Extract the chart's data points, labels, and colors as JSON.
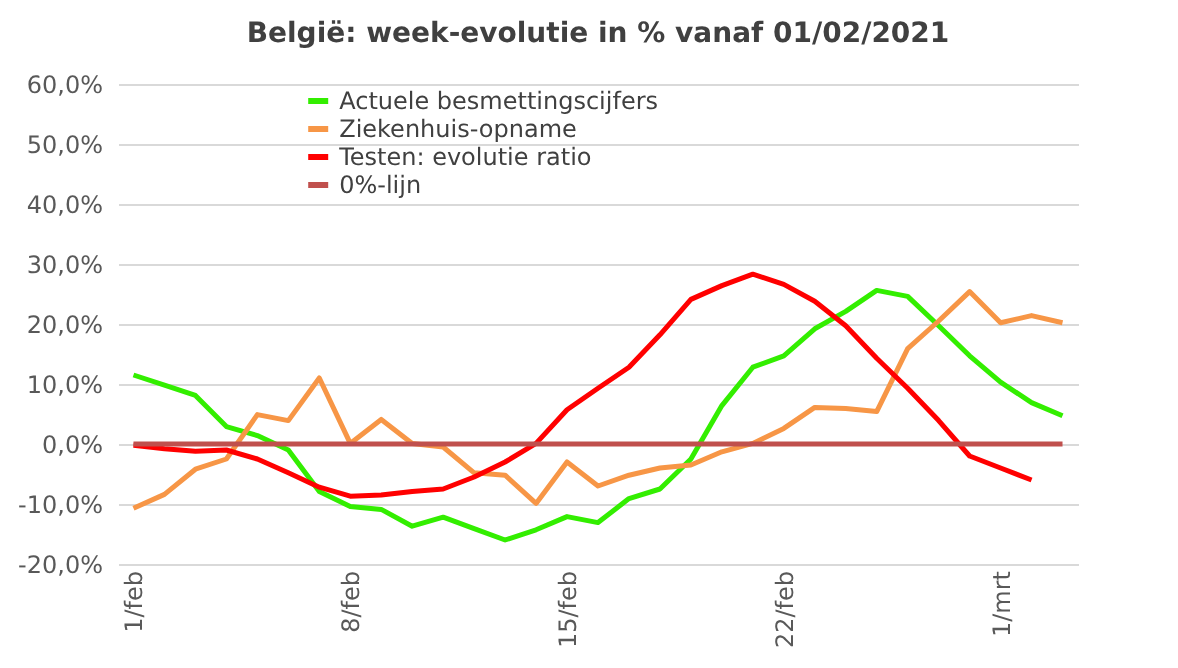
{
  "chart_data": {
    "type": "line",
    "title": "België:  week-evolutie in %  vanaf 01/02/2021",
    "categories": [
      "1/feb",
      null,
      null,
      null,
      null,
      null,
      null,
      "8/feb",
      null,
      null,
      null,
      null,
      null,
      null,
      "15/feb",
      null,
      null,
      null,
      null,
      null,
      null,
      "22/feb",
      null,
      null,
      null,
      null,
      null,
      null,
      "1/mrt",
      null,
      null
    ],
    "series": [
      {
        "name": "Actuele besmettingscijfers",
        "color": "#33ee00",
        "values": [
          11.5,
          9.8,
          8.1,
          2.9,
          1.4,
          -1.0,
          -7.9,
          -10.4,
          -10.9,
          -13.7,
          -12.2,
          -14.1,
          -16.0,
          -14.3,
          -12.1,
          -13.1,
          -9.1,
          -7.5,
          -2.5,
          6.4,
          12.8,
          14.7,
          19.2,
          22.1,
          25.6,
          24.6,
          19.7,
          14.7,
          10.3,
          6.9,
          4.7
        ]
      },
      {
        "name": "Ziekenhuis-opname",
        "color": "#f79646",
        "values": [
          -10.7,
          -8.4,
          -4.2,
          -2.5,
          4.9,
          3.9,
          11.0,
          0.1,
          4.1,
          0.1,
          -0.5,
          -4.8,
          -5.2,
          -9.9,
          -3.0,
          -7.0,
          -5.2,
          -4.0,
          -3.5,
          -1.3,
          0.1,
          2.6,
          6.1,
          5.9,
          5.4,
          15.9,
          20.5,
          25.4,
          20.2,
          21.4,
          20.2
        ]
      },
      {
        "name": "Testen: evolutie ratio",
        "color": "#ff0000",
        "values": [
          -0.2,
          -0.8,
          -1.2,
          -1.0,
          -2.5,
          -4.8,
          -7.2,
          -8.7,
          -8.5,
          -7.9,
          -7.5,
          -5.5,
          -3.0,
          0.1,
          5.7,
          9.3,
          12.8,
          18.2,
          24.1,
          26.4,
          28.3,
          26.6,
          23.8,
          19.7,
          14.3,
          9.3,
          3.9,
          -2.0,
          -4.0,
          -6.0,
          null
        ]
      },
      {
        "name": "0%-lijn",
        "color": "#c0504d",
        "values": [
          0,
          0,
          0,
          0,
          0,
          0,
          0,
          0,
          0,
          0,
          0,
          0,
          0,
          0,
          0,
          0,
          0,
          0,
          0,
          0,
          0,
          0,
          0,
          0,
          0,
          0,
          0,
          0,
          0,
          0,
          0
        ]
      }
    ],
    "ylim": [
      -20,
      60
    ],
    "yticks": [
      {
        "value": -20,
        "label": "-20,0%"
      },
      {
        "value": -10,
        "label": "-10,0%"
      },
      {
        "value": 0,
        "label": "0,0%"
      },
      {
        "value": 10,
        "label": "10,0%"
      },
      {
        "value": 20,
        "label": "20,0%"
      },
      {
        "value": 30,
        "label": "30,0%"
      },
      {
        "value": 40,
        "label": "40,0%"
      },
      {
        "value": 50,
        "label": "50,0%"
      },
      {
        "value": 60,
        "label": "60,0%"
      }
    ],
    "grid": "y",
    "legend": "top left"
  }
}
